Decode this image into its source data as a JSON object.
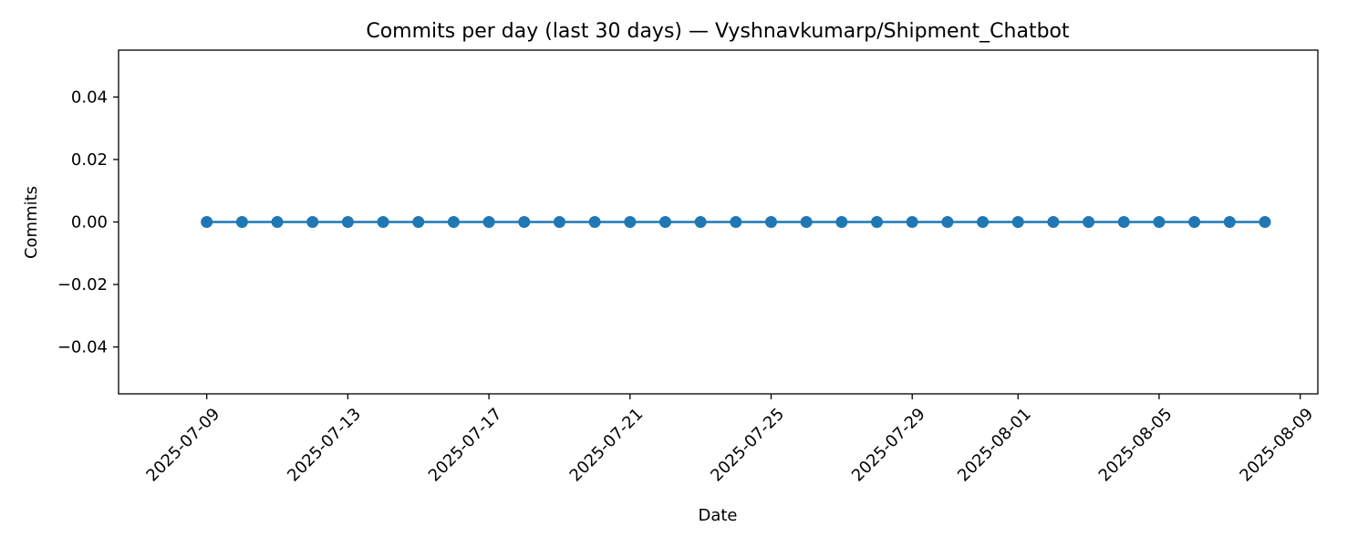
{
  "chart_data": {
    "type": "line",
    "title": "Commits per day (last 30 days) — Vyshnavkumarp/Shipment_Chatbot",
    "xlabel": "Date",
    "ylabel": "Commits",
    "x": [
      "2025-07-09",
      "2025-07-10",
      "2025-07-11",
      "2025-07-12",
      "2025-07-13",
      "2025-07-14",
      "2025-07-15",
      "2025-07-16",
      "2025-07-17",
      "2025-07-18",
      "2025-07-19",
      "2025-07-20",
      "2025-07-21",
      "2025-07-22",
      "2025-07-23",
      "2025-07-24",
      "2025-07-25",
      "2025-07-26",
      "2025-07-27",
      "2025-07-28",
      "2025-07-29",
      "2025-07-30",
      "2025-07-31",
      "2025-08-01",
      "2025-08-02",
      "2025-08-03",
      "2025-08-04",
      "2025-08-05",
      "2025-08-06",
      "2025-08-07",
      "2025-08-08"
    ],
    "series": [
      {
        "values": [
          0,
          0,
          0,
          0,
          0,
          0,
          0,
          0,
          0,
          0,
          0,
          0,
          0,
          0,
          0,
          0,
          0,
          0,
          0,
          0,
          0,
          0,
          0,
          0,
          0,
          0,
          0,
          0,
          0,
          0,
          0
        ]
      }
    ],
    "xlim": [
      "2025-07-07",
      "2025-08-10"
    ],
    "ylim": [
      -0.055,
      0.055
    ],
    "x_ticks": [
      "2025-07-09",
      "2025-07-13",
      "2025-07-17",
      "2025-07-21",
      "2025-07-25",
      "2025-07-29",
      "2025-08-01",
      "2025-08-05",
      "2025-08-09"
    ],
    "y_ticks": [
      0.04,
      0.02,
      0.0,
      -0.02,
      -0.04
    ],
    "y_tick_labels": [
      "0.04",
      "0.02",
      "0.00",
      "−0.02",
      "−0.04"
    ],
    "grid": false,
    "line_color": "#1f77b4",
    "marker": "circle"
  }
}
